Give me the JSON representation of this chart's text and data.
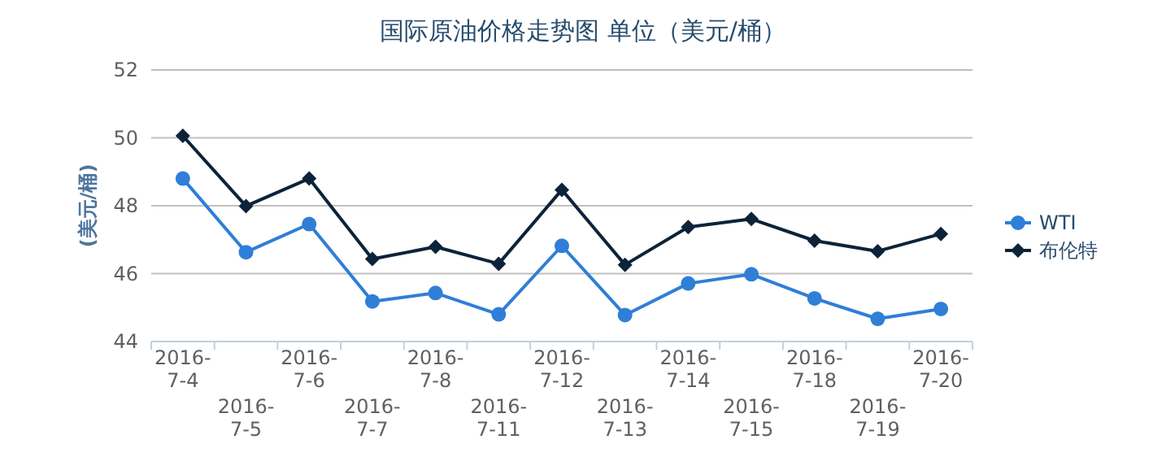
{
  "chart_data": {
    "type": "line",
    "title": "国际原油价格走势图 单位（美元/桶）",
    "ylabel": "(美元/桶)",
    "categories": [
      "2016-7-4",
      "2016-7-5",
      "2016-7-6",
      "2016-7-7",
      "2016-7-8",
      "2016-7-11",
      "2016-7-12",
      "2016-7-13",
      "2016-7-14",
      "2016-7-15",
      "2016-7-18",
      "2016-7-19",
      "2016-7-20"
    ],
    "series": [
      {
        "name": "WTI",
        "color": "#2f7ed8",
        "marker": "circle",
        "values": [
          48.8,
          46.63,
          47.46,
          45.18,
          45.43,
          44.8,
          46.82,
          44.78,
          45.71,
          45.98,
          45.27,
          44.67,
          44.96
        ]
      },
      {
        "name": "布伦特",
        "color": "#0d233a",
        "marker": "diamond",
        "values": [
          50.06,
          47.99,
          48.8,
          46.43,
          46.79,
          46.29,
          48.47,
          46.26,
          47.37,
          47.61,
          46.97,
          46.66,
          47.17
        ]
      }
    ],
    "ylim": [
      44,
      52
    ],
    "yticks": [
      44,
      46,
      48,
      50,
      52
    ],
    "grid": "y",
    "legend": "right"
  }
}
